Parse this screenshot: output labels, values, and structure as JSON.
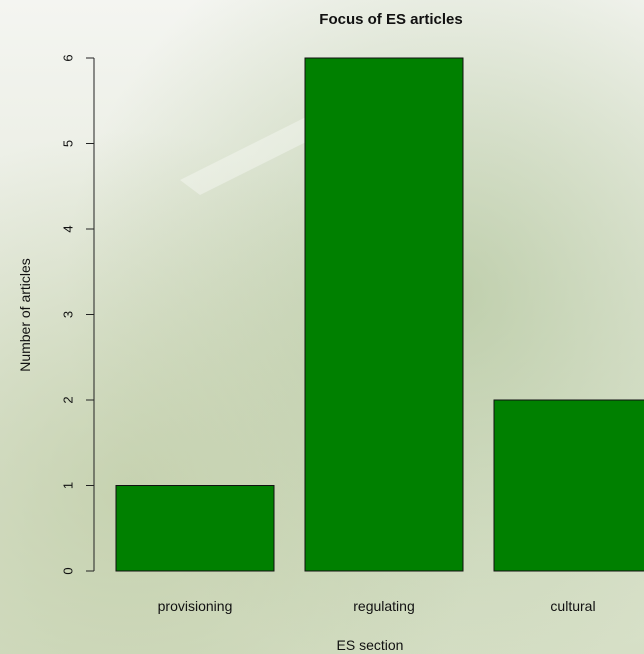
{
  "chart_data": {
    "type": "bar",
    "title": "Focus of ES articles",
    "xlabel": "ES section",
    "ylabel": "Number of articles",
    "categories": [
      "provisioning",
      "regulating",
      "cultural"
    ],
    "values": [
      1,
      6,
      2
    ],
    "ylim": [
      0,
      6
    ],
    "yticks": [
      0,
      1,
      2,
      3,
      4,
      5,
      6
    ],
    "grid": false,
    "legend": "none",
    "bar_color": "#008000",
    "background": "photo of green vineyard foliage (faded)"
  }
}
